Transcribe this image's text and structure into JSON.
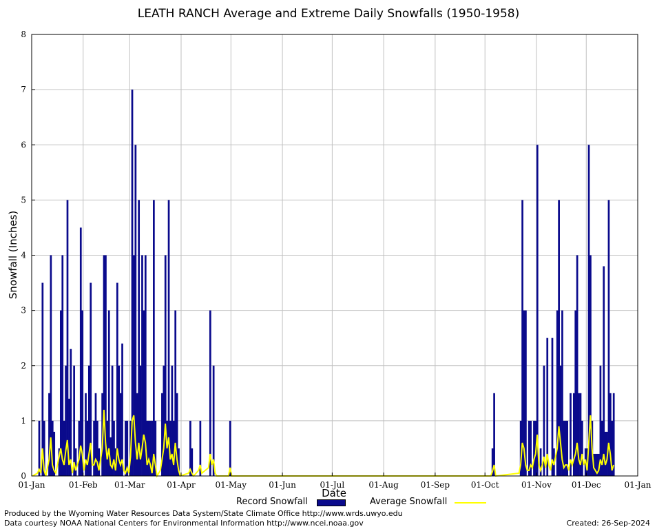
{
  "title": "LEATH RANCH Average and Extreme Daily Snowfalls (1950-1958)",
  "footer": {
    "produced_by": "Produced by the Wyoming Water Resources Data System/State Climate Office http://www.wrds.uwyo.edu",
    "courtesy": "Data courtesy NOAA National Centers for Environmental Information http://www.ncei.noaa.gov",
    "created": "Created:  26-Sep-2024"
  },
  "colors": {
    "record": "#0a0a8c",
    "average": "#ffff00",
    "grid": "#c0c0c0"
  },
  "chart_data": {
    "type": "bar",
    "title": "LEATH RANCH Average and Extreme Daily Snowfalls (1950-1958)",
    "xlabel": "Date",
    "ylabel": "Snowfall (Inches)",
    "ylim": [
      0,
      8
    ],
    "yticks": [
      "0",
      "1",
      "2",
      "3",
      "4",
      "5",
      "6",
      "7",
      "8"
    ],
    "xticks": [
      "01-Jan",
      "01-Feb",
      "01-Mar",
      "01-Apr",
      "01-May",
      "01-Jun",
      "01-Jul",
      "01-Aug",
      "01-Sep",
      "01-Oct",
      "01-Nov",
      "01-Dec",
      "01-Jan"
    ],
    "xtick_days": [
      0,
      31,
      59,
      90,
      120,
      151,
      181,
      212,
      243,
      273,
      304,
      334,
      365
    ],
    "grid": true,
    "legend_placement": "bottom-center",
    "series": [
      {
        "name": "Record Snowfall",
        "type": "bar",
        "points": [
          [
            4,
            1.0
          ],
          [
            6,
            3.5
          ],
          [
            7,
            1.0
          ],
          [
            10,
            1.5
          ],
          [
            11,
            4.0
          ],
          [
            12,
            1.0
          ],
          [
            13,
            0.8
          ],
          [
            16,
            0.5
          ],
          [
            17,
            3.0
          ],
          [
            18,
            4.0
          ],
          [
            19,
            1.0
          ],
          [
            20,
            2.0
          ],
          [
            21,
            5.0
          ],
          [
            22,
            1.4
          ],
          [
            23,
            2.3
          ],
          [
            25,
            2.0
          ],
          [
            26,
            0.5
          ],
          [
            28,
            1.0
          ],
          [
            29,
            4.5
          ],
          [
            30,
            3.0
          ],
          [
            32,
            1.5
          ],
          [
            33,
            1.0
          ],
          [
            34,
            2.0
          ],
          [
            35,
            3.5
          ],
          [
            37,
            1.0
          ],
          [
            38,
            1.5
          ],
          [
            39,
            1.0
          ],
          [
            40,
            0.5
          ],
          [
            42,
            1.5
          ],
          [
            43,
            4.0
          ],
          [
            44,
            4.0
          ],
          [
            45,
            1.0
          ],
          [
            46,
            3.0
          ],
          [
            47,
            0.7
          ],
          [
            48,
            2.0
          ],
          [
            49,
            1.0
          ],
          [
            50,
            0.5
          ],
          [
            51,
            3.5
          ],
          [
            52,
            2.0
          ],
          [
            53,
            1.5
          ],
          [
            54,
            2.4
          ],
          [
            56,
            1.0
          ],
          [
            57,
            1.0
          ],
          [
            59,
            1.0
          ],
          [
            60,
            7.0
          ],
          [
            61,
            4.0
          ],
          [
            62,
            6.0
          ],
          [
            63,
            1.5
          ],
          [
            64,
            5.0
          ],
          [
            65,
            2.0
          ],
          [
            66,
            4.0
          ],
          [
            67,
            3.0
          ],
          [
            68,
            4.0
          ],
          [
            69,
            1.0
          ],
          [
            70,
            1.0
          ],
          [
            71,
            1.0
          ],
          [
            72,
            1.0
          ],
          [
            73,
            5.0
          ],
          [
            74,
            1.0
          ],
          [
            78,
            1.5
          ],
          [
            79,
            2.0
          ],
          [
            80,
            4.0
          ],
          [
            81,
            1.0
          ],
          [
            82,
            5.0
          ],
          [
            83,
            1.0
          ],
          [
            84,
            2.0
          ],
          [
            85,
            1.0
          ],
          [
            86,
            3.0
          ],
          [
            87,
            1.5
          ],
          [
            88,
            0.5
          ],
          [
            95,
            1.0
          ],
          [
            96,
            0.5
          ],
          [
            101,
            1.0
          ],
          [
            107,
            3.0
          ],
          [
            109,
            2.0
          ],
          [
            119,
            1.0
          ],
          [
            277,
            0.5
          ],
          [
            278,
            1.5
          ],
          [
            294,
            1.0
          ],
          [
            295,
            5.0
          ],
          [
            296,
            3.0
          ],
          [
            297,
            3.0
          ],
          [
            299,
            1.0
          ],
          [
            300,
            1.0
          ],
          [
            302,
            1.0
          ],
          [
            303,
            1.0
          ],
          [
            304,
            6.0
          ],
          [
            306,
            0.5
          ],
          [
            308,
            2.0
          ],
          [
            310,
            2.5
          ],
          [
            313,
            2.5
          ],
          [
            314,
            0.5
          ],
          [
            316,
            3.0
          ],
          [
            317,
            5.0
          ],
          [
            318,
            2.0
          ],
          [
            319,
            3.0
          ],
          [
            320,
            1.0
          ],
          [
            321,
            1.0
          ],
          [
            322,
            1.0
          ],
          [
            324,
            1.5
          ],
          [
            326,
            1.5
          ],
          [
            327,
            3.0
          ],
          [
            328,
            4.0
          ],
          [
            329,
            1.5
          ],
          [
            330,
            1.5
          ],
          [
            331,
            1.0
          ],
          [
            333,
            0.5
          ],
          [
            334,
            0.5
          ],
          [
            335,
            6.0
          ],
          [
            336,
            4.0
          ],
          [
            337,
            1.0
          ],
          [
            338,
            0.4
          ],
          [
            339,
            0.4
          ],
          [
            340,
            0.4
          ],
          [
            341,
            0.4
          ],
          [
            342,
            2.0
          ],
          [
            343,
            1.0
          ],
          [
            344,
            3.8
          ],
          [
            345,
            0.8
          ],
          [
            346,
            0.8
          ],
          [
            347,
            5.0
          ],
          [
            348,
            1.5
          ],
          [
            349,
            1.0
          ],
          [
            350,
            1.5
          ]
        ]
      },
      {
        "name": "Average Snowfall",
        "type": "line",
        "points": [
          [
            0,
            0.0
          ],
          [
            3,
            0.05
          ],
          [
            4,
            0.12
          ],
          [
            5,
            0.05
          ],
          [
            6,
            0.5
          ],
          [
            7,
            0.1
          ],
          [
            8,
            0.0
          ],
          [
            10,
            0.3
          ],
          [
            11,
            0.7
          ],
          [
            12,
            0.2
          ],
          [
            13,
            0.1
          ],
          [
            14,
            0.05
          ],
          [
            16,
            0.35
          ],
          [
            17,
            0.5
          ],
          [
            18,
            0.3
          ],
          [
            19,
            0.2
          ],
          [
            20,
            0.45
          ],
          [
            21,
            0.65
          ],
          [
            22,
            0.2
          ],
          [
            23,
            0.3
          ],
          [
            24,
            0.05
          ],
          [
            25,
            0.25
          ],
          [
            26,
            0.1
          ],
          [
            28,
            0.3
          ],
          [
            29,
            0.55
          ],
          [
            30,
            0.4
          ],
          [
            31,
            0.1
          ],
          [
            32,
            0.3
          ],
          [
            33,
            0.2
          ],
          [
            34,
            0.4
          ],
          [
            35,
            0.6
          ],
          [
            36,
            0.2
          ],
          [
            37,
            0.2
          ],
          [
            38,
            0.3
          ],
          [
            39,
            0.25
          ],
          [
            40,
            0.1
          ],
          [
            41,
            0.3
          ],
          [
            42,
            0.5
          ],
          [
            43,
            1.2
          ],
          [
            44,
            0.6
          ],
          [
            45,
            0.3
          ],
          [
            46,
            0.5
          ],
          [
            47,
            0.2
          ],
          [
            48,
            0.15
          ],
          [
            49,
            0.3
          ],
          [
            50,
            0.1
          ],
          [
            51,
            0.5
          ],
          [
            52,
            0.3
          ],
          [
            53,
            0.2
          ],
          [
            54,
            0.3
          ],
          [
            55,
            0.1
          ],
          [
            56,
            0.05
          ],
          [
            57,
            0.15
          ],
          [
            58,
            0.05
          ],
          [
            59,
            0.35
          ],
          [
            60,
            1.0
          ],
          [
            61,
            1.1
          ],
          [
            62,
            0.6
          ],
          [
            63,
            0.3
          ],
          [
            64,
            0.6
          ],
          [
            65,
            0.3
          ],
          [
            66,
            0.5
          ],
          [
            67,
            0.75
          ],
          [
            68,
            0.6
          ],
          [
            69,
            0.2
          ],
          [
            70,
            0.3
          ],
          [
            71,
            0.2
          ],
          [
            72,
            0.05
          ],
          [
            73,
            0.4
          ],
          [
            74,
            0.2
          ],
          [
            75,
            0.0
          ],
          [
            77,
            0.1
          ],
          [
            78,
            0.3
          ],
          [
            79,
            0.5
          ],
          [
            80,
            0.95
          ],
          [
            81,
            0.5
          ],
          [
            82,
            0.7
          ],
          [
            83,
            0.3
          ],
          [
            84,
            0.4
          ],
          [
            85,
            0.2
          ],
          [
            86,
            0.6
          ],
          [
            87,
            0.3
          ],
          [
            88,
            0.1
          ],
          [
            89,
            0.0
          ],
          [
            94,
            0.05
          ],
          [
            95,
            0.12
          ],
          [
            96,
            0.05
          ],
          [
            97,
            0.0
          ],
          [
            100,
            0.1
          ],
          [
            101,
            0.2
          ],
          [
            102,
            0.05
          ],
          [
            106,
            0.15
          ],
          [
            107,
            0.4
          ],
          [
            108,
            0.2
          ],
          [
            109,
            0.3
          ],
          [
            110,
            0.05
          ],
          [
            111,
            0.0
          ],
          [
            118,
            0.0
          ],
          [
            119,
            0.15
          ],
          [
            120,
            0.0
          ],
          [
            276,
            0.0
          ],
          [
            277,
            0.08
          ],
          [
            278,
            0.2
          ],
          [
            279,
            0.0
          ],
          [
            293,
            0.05
          ],
          [
            294,
            0.2
          ],
          [
            295,
            0.6
          ],
          [
            296,
            0.5
          ],
          [
            297,
            0.2
          ],
          [
            298,
            0.1
          ],
          [
            299,
            0.1
          ],
          [
            300,
            0.2
          ],
          [
            301,
            0.15
          ],
          [
            302,
            0.3
          ],
          [
            303,
            0.4
          ],
          [
            304,
            0.75
          ],
          [
            305,
            0.2
          ],
          [
            306,
            0.1
          ],
          [
            307,
            0.2
          ],
          [
            308,
            0.35
          ],
          [
            309,
            0.15
          ],
          [
            310,
            0.4
          ],
          [
            311,
            0.2
          ],
          [
            312,
            0.1
          ],
          [
            313,
            0.3
          ],
          [
            314,
            0.2
          ],
          [
            315,
            0.35
          ],
          [
            316,
            0.5
          ],
          [
            317,
            0.9
          ],
          [
            318,
            0.6
          ],
          [
            319,
            0.3
          ],
          [
            320,
            0.15
          ],
          [
            321,
            0.2
          ],
          [
            322,
            0.2
          ],
          [
            323,
            0.1
          ],
          [
            324,
            0.3
          ],
          [
            325,
            0.2
          ],
          [
            326,
            0.3
          ],
          [
            327,
            0.4
          ],
          [
            328,
            0.6
          ],
          [
            329,
            0.3
          ],
          [
            330,
            0.2
          ],
          [
            331,
            0.4
          ],
          [
            332,
            0.2
          ],
          [
            333,
            0.3
          ],
          [
            334,
            0.1
          ],
          [
            335,
            0.6
          ],
          [
            336,
            1.1
          ],
          [
            337,
            0.5
          ],
          [
            338,
            0.15
          ],
          [
            339,
            0.1
          ],
          [
            340,
            0.05
          ],
          [
            341,
            0.1
          ],
          [
            342,
            0.3
          ],
          [
            343,
            0.2
          ],
          [
            344,
            0.4
          ],
          [
            345,
            0.2
          ],
          [
            346,
            0.3
          ],
          [
            347,
            0.6
          ],
          [
            348,
            0.4
          ],
          [
            349,
            0.1
          ],
          [
            350,
            0.2
          ]
        ]
      }
    ]
  }
}
